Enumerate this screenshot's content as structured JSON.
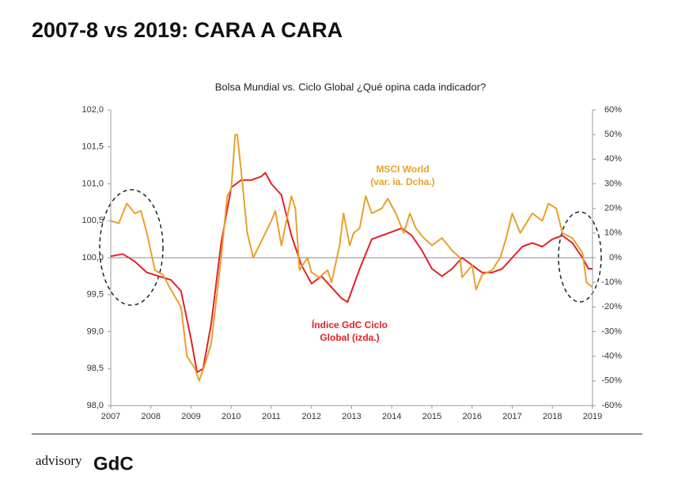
{
  "header": {
    "title": "2007-8 vs 2019: CARA A CARA"
  },
  "chart_data": {
    "type": "line",
    "title": "Bolsa Mundial vs. Ciclo Global ¿Qué opina cada indicador?",
    "xlim": [
      2007,
      2019
    ],
    "xticks": [
      2007,
      2008,
      2009,
      2010,
      2011,
      2012,
      2013,
      2014,
      2015,
      2016,
      2017,
      2018,
      2019
    ],
    "ylim": [
      98,
      102
    ],
    "yticks": [
      {
        "value": 98,
        "label": "98,0"
      },
      {
        "value": 98.5,
        "label": "98,5"
      },
      {
        "value": 99,
        "label": "99,0"
      },
      {
        "value": 99.5,
        "label": "99,5"
      },
      {
        "value": 100,
        "label": "100,0"
      },
      {
        "value": 100.5,
        "label": "100,5"
      },
      {
        "value": 101,
        "label": "101,0"
      },
      {
        "value": 101.5,
        "label": "101,5"
      },
      {
        "value": 102,
        "label": "102,0"
      }
    ],
    "y2lim": [
      -60,
      60
    ],
    "y2ticks": [
      {
        "value": -60,
        "label": "-60%"
      },
      {
        "value": -50,
        "label": "-50%"
      },
      {
        "value": -40,
        "label": "-40%"
      },
      {
        "value": -30,
        "label": "-30%"
      },
      {
        "value": -20,
        "label": "-20%"
      },
      {
        "value": -10,
        "label": "-10%"
      },
      {
        "value": 0,
        "label": "0%"
      },
      {
        "value": 10,
        "label": "10%"
      },
      {
        "value": 20,
        "label": "20%"
      },
      {
        "value": 30,
        "label": "30%"
      },
      {
        "value": 40,
        "label": "40%"
      },
      {
        "value": 50,
        "label": "50%"
      },
      {
        "value": 60,
        "label": "60%"
      }
    ],
    "annotations": [
      {
        "lines": [
          "MSCI World",
          "(var. ia. Dcha.)"
        ],
        "color": "#e8a02a"
      },
      {
        "lines": [
          "Índice GdC Ciclo",
          "Global (izda.)"
        ],
        "color": "#e3202a"
      }
    ],
    "series": [
      {
        "name": "Índice GdC Ciclo Global",
        "color": "#e3202a",
        "x": [
          2007.0,
          2007.3,
          2007.6,
          2007.9,
          2008.2,
          2008.5,
          2008.75,
          2009.0,
          2009.15,
          2009.3,
          2009.5,
          2009.75,
          2010.0,
          2010.25,
          2010.5,
          2010.75,
          2010.85,
          2011.0,
          2011.25,
          2011.5,
          2011.75,
          2012.0,
          2012.25,
          2012.5,
          2012.75,
          2012.9,
          2013.2,
          2013.5,
          2013.75,
          2014.0,
          2014.25,
          2014.5,
          2014.75,
          2015.0,
          2015.25,
          2015.5,
          2015.75,
          2016.0,
          2016.25,
          2016.5,
          2016.75,
          2017.0,
          2017.25,
          2017.5,
          2017.75,
          2018.0,
          2018.25,
          2018.5,
          2018.75,
          2018.9,
          2019.0
        ],
        "values": [
          100.02,
          100.05,
          99.95,
          99.8,
          99.75,
          99.7,
          99.55,
          98.9,
          98.45,
          98.5,
          99.1,
          100.2,
          100.95,
          101.05,
          101.05,
          101.1,
          101.15,
          101.0,
          100.85,
          100.3,
          99.9,
          99.65,
          99.75,
          99.6,
          99.45,
          99.4,
          99.85,
          100.25,
          100.3,
          100.35,
          100.4,
          100.3,
          100.1,
          99.85,
          99.75,
          99.85,
          100.0,
          99.9,
          99.8,
          99.8,
          99.85,
          100.0,
          100.15,
          100.2,
          100.15,
          100.25,
          100.3,
          100.2,
          100.0,
          99.85,
          99.85
        ]
      },
      {
        "name": "MSCI World",
        "color": "#e8a02a",
        "axis": "y2",
        "x": [
          2007.0,
          2007.2,
          2007.4,
          2007.6,
          2007.75,
          2007.9,
          2008.1,
          2008.3,
          2008.5,
          2008.75,
          2008.9,
          2009.1,
          2009.2,
          2009.35,
          2009.5,
          2009.75,
          2009.9,
          2010.0,
          2010.1,
          2010.15,
          2010.25,
          2010.4,
          2010.55,
          2010.7,
          2010.85,
          2011.0,
          2011.1,
          2011.25,
          2011.5,
          2011.6,
          2011.7,
          2011.9,
          2012.0,
          2012.2,
          2012.4,
          2012.5,
          2012.7,
          2012.8,
          2012.95,
          2013.05,
          2013.2,
          2013.35,
          2013.5,
          2013.75,
          2013.9,
          2014.1,
          2014.3,
          2014.45,
          2014.6,
          2014.8,
          2015.0,
          2015.25,
          2015.5,
          2015.7,
          2015.75,
          2016.0,
          2016.1,
          2016.25,
          2016.5,
          2016.7,
          2016.85,
          2017.0,
          2017.2,
          2017.5,
          2017.75,
          2017.9,
          2018.1,
          2018.25,
          2018.5,
          2018.75,
          2018.85,
          2019.0
        ],
        "values": [
          15,
          14,
          22,
          18,
          19,
          10,
          -5,
          -7,
          -13,
          -20,
          -40,
          -45,
          -50,
          -43,
          -35,
          0,
          25,
          28,
          50,
          50,
          35,
          10,
          0,
          5,
          10,
          15,
          19,
          5,
          25,
          20,
          -5,
          0,
          -6,
          -8,
          -5,
          -10,
          5,
          18,
          5,
          10,
          12,
          25,
          18,
          20,
          24,
          18,
          10,
          18,
          12,
          8,
          5,
          8,
          3,
          0,
          -8,
          -3,
          -13,
          -7,
          -5,
          0,
          8,
          18,
          10,
          18,
          15,
          22,
          20,
          10,
          8,
          2,
          -10,
          -12
        ]
      }
    ]
  },
  "footer": {
    "brand": "advisory",
    "logo": "GdC"
  }
}
